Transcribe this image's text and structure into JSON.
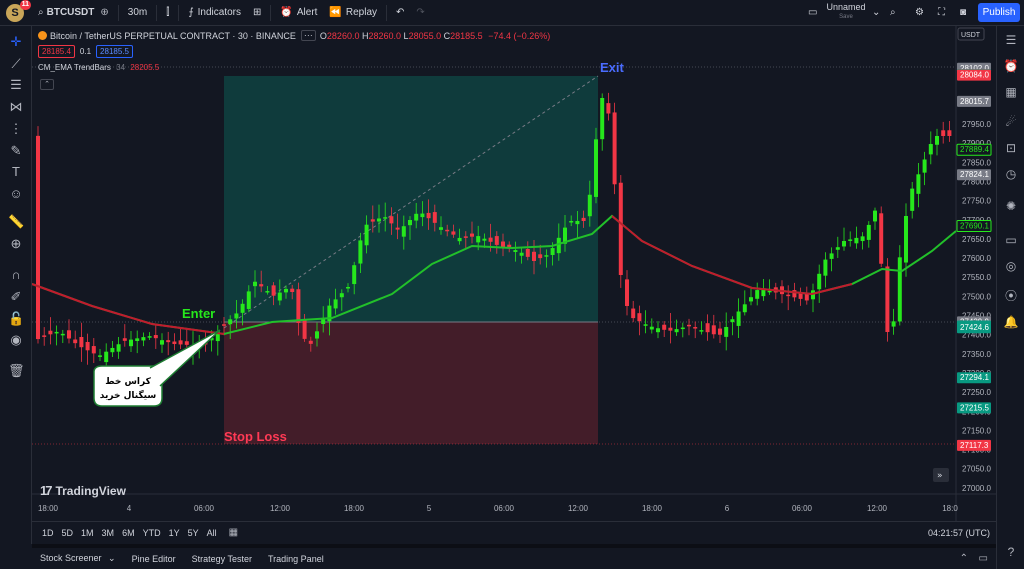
{
  "header": {
    "avatar_letter": "S",
    "avatar_badge": "11",
    "symbol": "BTCUSDT",
    "interval": "30m",
    "indicators_label": "Indicators",
    "alert_label": "Alert",
    "replay_label": "Replay",
    "layout_name": "Unnamed",
    "layout_status": "Save",
    "publish_label": "Publish"
  },
  "legend": {
    "title": "Bitcoin / TetherUS PERPETUAL CONTRACT · 30 · BINANCE",
    "open": "28260.0",
    "high": "28260.0",
    "low": "28055.0",
    "close": "28185.5",
    "change": "−74.4 (−0.26%)",
    "bid": "28185.4",
    "spread": "0.1",
    "ask": "28185.5",
    "indicator_name": "CM_EMA TrendBars",
    "indicator_param": "34",
    "indicator_value": "28205.5"
  },
  "price_axis": {
    "currency": "USDT",
    "ticks": [
      "27950.0",
      "27900.0",
      "27850.0",
      "27800.0",
      "27750.0",
      "27700.0",
      "27650.0",
      "27600.0",
      "27550.0",
      "27500.0",
      "27450.0",
      "27400.0",
      "27350.0",
      "27300.0",
      "27250.0",
      "27200.0",
      "27150.0",
      "27100.0",
      "27050.0",
      "27000.0"
    ],
    "tags": [
      {
        "label": "28102.0",
        "color": "#787b86"
      },
      {
        "label": "28085.3",
        "color": "#089981"
      },
      {
        "label": "28084.0",
        "color": "#f23645"
      },
      {
        "label": "28015.7",
        "color": "#787b86"
      },
      {
        "label": "27889.4",
        "color": "#131722"
      },
      {
        "label": "27824.1",
        "color": "#787b86"
      },
      {
        "label": "27690.1",
        "color": "#131722"
      },
      {
        "label": "27439.9",
        "color": "#787b86"
      },
      {
        "label": "27429.1",
        "color": "#089981"
      },
      {
        "label": "27424.6",
        "color": "#089981"
      },
      {
        "label": "27294.1",
        "color": "#089981"
      },
      {
        "label": "27215.5",
        "color": "#089981"
      },
      {
        "label": "27117.3",
        "color": "#f23645"
      }
    ]
  },
  "time_axis": {
    "ticks": [
      "18:00",
      "4",
      "06:00",
      "12:00",
      "18:00",
      "5",
      "06:00",
      "12:00",
      "18:00",
      "6",
      "06:00",
      "12:00",
      "18:0"
    ]
  },
  "annotations": {
    "enter": "Enter",
    "exit": "Exit",
    "stop_loss": "Stop Loss",
    "callout_line1": "کراس خط",
    "callout_line2": "سیگنال خرید"
  },
  "watermark": "TradingView",
  "range_buttons": [
    "1D",
    "5D",
    "1M",
    "3M",
    "6M",
    "YTD",
    "1Y",
    "5Y",
    "All"
  ],
  "clock": "04:21:57 (UTC)",
  "bottom_panels": [
    "Stock Screener",
    "Pine Editor",
    "Strategy Tester",
    "Trading Panel"
  ],
  "colors": {
    "up": "#26e81c",
    "down": "#f23645",
    "ema": "#22c02a",
    "accent": "#2962ff"
  }
}
